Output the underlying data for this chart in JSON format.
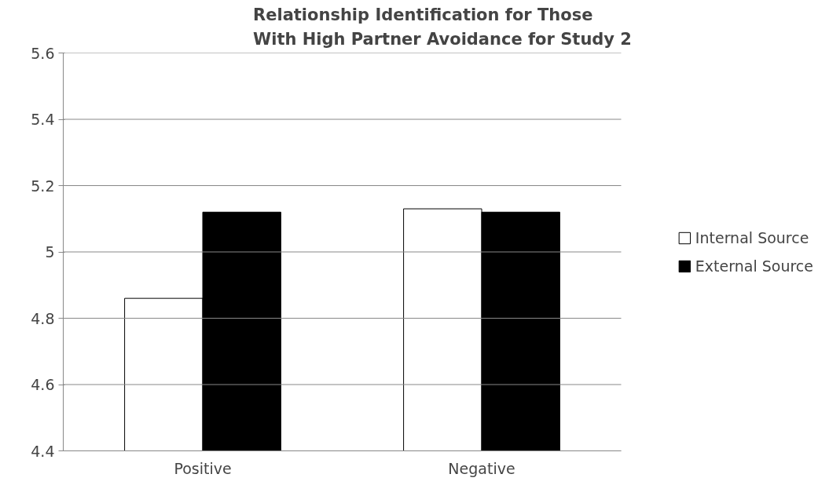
{
  "chart_data": {
    "type": "bar",
    "title": "Relationship Identification for Those\nWith High Partner Avoidance for Study 2",
    "categories": [
      "Positive",
      "Negative"
    ],
    "series": [
      {
        "name": "Internal Source",
        "color": "#ffffff",
        "values": [
          4.86,
          5.13
        ]
      },
      {
        "name": "External Source",
        "color": "#000000",
        "values": [
          5.12,
          5.12
        ]
      }
    ],
    "ylim": [
      4.4,
      5.6
    ],
    "yticks": [
      4.4,
      4.6,
      4.8,
      5,
      5.2,
      5.4,
      5.6
    ],
    "grid": "y",
    "legend": "right"
  }
}
